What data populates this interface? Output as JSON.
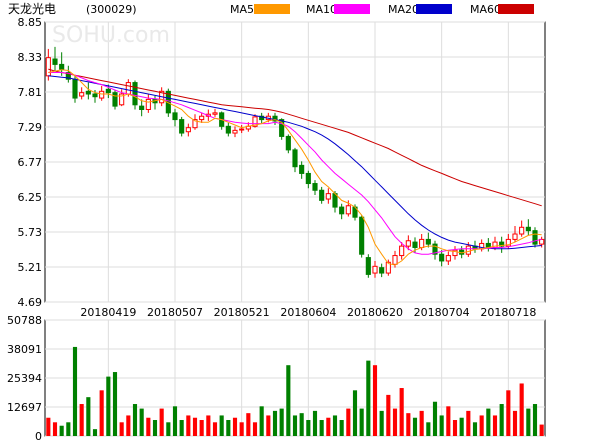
{
  "chart_data": [
    {
      "type": "candlestick",
      "title": "天龙光电",
      "code": "(300029)",
      "watermark": "SOHU.com",
      "legend": [
        {
          "name": "MA5",
          "color": "#ff9900"
        },
        {
          "name": "MA10",
          "color": "#ff00ff"
        },
        {
          "name": "MA20",
          "color": "#0000cc"
        },
        {
          "name": "MA60",
          "color": "#cc0000"
        }
      ],
      "ylim": [
        4.69,
        8.85
      ],
      "yticks": [
        "8.85",
        "8.33",
        "7.81",
        "7.29",
        "6.77",
        "6.25",
        "5.73",
        "5.21",
        "4.69"
      ],
      "xticks": [
        {
          "label": "20180419",
          "index": 9
        },
        {
          "label": "20180507",
          "index": 19
        },
        {
          "label": "20180521",
          "index": 29
        },
        {
          "label": "20180604",
          "index": 39
        },
        {
          "label": "20180620",
          "index": 49
        },
        {
          "label": "20180704",
          "index": 59
        },
        {
          "label": "20180718",
          "index": 69
        }
      ],
      "up_color": "#ff0000",
      "down_color": "#008000",
      "grid": true,
      "candles": [
        [
          8.05,
          8.32,
          8.45,
          7.98
        ],
        [
          8.3,
          8.22,
          8.48,
          8.12
        ],
        [
          8.22,
          8.15,
          8.4,
          8.05
        ],
        [
          8.1,
          8.0,
          8.2,
          7.95
        ],
        [
          8.0,
          7.72,
          8.05,
          7.65
        ],
        [
          7.75,
          7.8,
          7.88,
          7.7
        ],
        [
          7.82,
          7.78,
          7.95,
          7.7
        ],
        [
          7.78,
          7.74,
          7.84,
          7.65
        ],
        [
          7.72,
          7.82,
          7.9,
          7.68
        ],
        [
          7.85,
          7.8,
          7.92,
          7.72
        ],
        [
          7.8,
          7.6,
          7.84,
          7.55
        ],
        [
          7.62,
          7.78,
          7.85,
          7.6
        ],
        [
          7.78,
          7.95,
          8.0,
          7.74
        ],
        [
          7.95,
          7.62,
          7.98,
          7.55
        ],
        [
          7.6,
          7.55,
          7.7,
          7.45
        ],
        [
          7.55,
          7.7,
          7.78,
          7.5
        ],
        [
          7.7,
          7.65,
          7.75,
          7.55
        ],
        [
          7.65,
          7.82,
          7.88,
          7.6
        ],
        [
          7.82,
          7.5,
          7.86,
          7.44
        ],
        [
          7.5,
          7.4,
          7.56,
          7.3
        ],
        [
          7.4,
          7.2,
          7.44,
          7.15
        ],
        [
          7.22,
          7.28,
          7.34,
          7.15
        ],
        [
          7.28,
          7.4,
          7.48,
          7.25
        ],
        [
          7.4,
          7.45,
          7.5,
          7.35
        ],
        [
          7.45,
          7.48,
          7.55,
          7.38
        ],
        [
          7.48,
          7.5,
          7.56,
          7.44
        ],
        [
          7.5,
          7.3,
          7.52,
          7.25
        ],
        [
          7.3,
          7.2,
          7.35,
          7.15
        ],
        [
          7.2,
          7.24,
          7.3,
          7.14
        ],
        [
          7.25,
          7.26,
          7.32,
          7.2
        ],
        [
          7.26,
          7.3,
          7.36,
          7.22
        ],
        [
          7.3,
          7.44,
          7.48,
          7.28
        ],
        [
          7.45,
          7.4,
          7.5,
          7.35
        ],
        [
          7.4,
          7.45,
          7.5,
          7.36
        ],
        [
          7.45,
          7.38,
          7.5,
          7.32
        ],
        [
          7.4,
          7.15,
          7.42,
          7.1
        ],
        [
          7.15,
          6.95,
          7.18,
          6.9
        ],
        [
          6.95,
          6.7,
          6.98,
          6.62
        ],
        [
          6.72,
          6.6,
          6.78,
          6.52
        ],
        [
          6.6,
          6.45,
          6.64,
          6.38
        ],
        [
          6.45,
          6.35,
          6.5,
          6.28
        ],
        [
          6.35,
          6.2,
          6.4,
          6.15
        ],
        [
          6.22,
          6.3,
          6.38,
          6.15
        ],
        [
          6.3,
          6.1,
          6.34,
          6.02
        ],
        [
          6.1,
          6.0,
          6.15,
          5.92
        ],
        [
          6.0,
          6.12,
          6.2,
          5.96
        ],
        [
          6.1,
          5.95,
          6.14,
          5.9
        ],
        [
          5.95,
          5.4,
          5.98,
          5.35
        ],
        [
          5.35,
          5.1,
          5.4,
          5.05
        ],
        [
          5.12,
          5.22,
          5.3,
          5.05
        ],
        [
          5.2,
          5.12,
          5.26,
          5.06
        ],
        [
          5.12,
          5.28,
          5.32,
          5.08
        ],
        [
          5.25,
          5.38,
          5.45,
          5.2
        ],
        [
          5.38,
          5.52,
          5.58,
          5.32
        ],
        [
          5.52,
          5.6,
          5.68,
          5.46
        ],
        [
          5.58,
          5.5,
          5.65,
          5.42
        ],
        [
          5.5,
          5.62,
          5.7,
          5.46
        ],
        [
          5.62,
          5.55,
          5.72,
          5.5
        ],
        [
          5.55,
          5.4,
          5.6,
          5.32
        ],
        [
          5.4,
          5.3,
          5.46,
          5.22
        ],
        [
          5.3,
          5.38,
          5.44,
          5.24
        ],
        [
          5.38,
          5.46,
          5.52,
          5.32
        ],
        [
          5.46,
          5.4,
          5.52,
          5.34
        ],
        [
          5.4,
          5.52,
          5.58,
          5.36
        ],
        [
          5.52,
          5.48,
          5.6,
          5.42
        ],
        [
          5.48,
          5.56,
          5.62,
          5.44
        ],
        [
          5.56,
          5.5,
          5.64,
          5.44
        ],
        [
          5.5,
          5.58,
          5.66,
          5.46
        ],
        [
          5.58,
          5.52,
          5.66,
          5.42
        ],
        [
          5.52,
          5.62,
          5.7,
          5.48
        ],
        [
          5.62,
          5.7,
          5.82,
          5.58
        ],
        [
          5.7,
          5.8,
          5.9,
          5.66
        ],
        [
          5.8,
          5.75,
          5.92,
          5.68
        ],
        [
          5.75,
          5.55,
          5.8,
          5.5
        ],
        [
          5.55,
          5.62,
          5.66,
          5.5
        ]
      ],
      "ma5": [
        8.1,
        8.12,
        8.14,
        8.13,
        8.05,
        7.95,
        7.85,
        7.8,
        7.78,
        7.78,
        7.75,
        7.75,
        7.78,
        7.74,
        7.68,
        7.66,
        7.68,
        7.7,
        7.65,
        7.6,
        7.55,
        7.45,
        7.38,
        7.36,
        7.36,
        7.42,
        7.4,
        7.36,
        7.32,
        7.28,
        7.3,
        7.32,
        7.34,
        7.38,
        7.4,
        7.36,
        7.24,
        7.1,
        6.96,
        6.8,
        6.62,
        6.48,
        6.4,
        6.3,
        6.2,
        6.16,
        6.1,
        5.98,
        5.8,
        5.55,
        5.4,
        5.26,
        5.24,
        5.3,
        5.4,
        5.46,
        5.5,
        5.52,
        5.52,
        5.48,
        5.45,
        5.44,
        5.42,
        5.44,
        5.47,
        5.48,
        5.5,
        5.52,
        5.53,
        5.54,
        5.58,
        5.63,
        5.68,
        5.7,
        5.69
      ],
      "ma10": [
        8.1,
        8.1,
        8.1,
        8.09,
        8.06,
        8.02,
        7.98,
        7.95,
        7.92,
        7.88,
        7.84,
        7.8,
        7.78,
        7.76,
        7.74,
        7.72,
        7.71,
        7.7,
        7.68,
        7.65,
        7.62,
        7.58,
        7.54,
        7.5,
        7.46,
        7.42,
        7.4,
        7.38,
        7.36,
        7.35,
        7.34,
        7.34,
        7.34,
        7.34,
        7.36,
        7.34,
        7.3,
        7.22,
        7.12,
        7.02,
        6.92,
        6.8,
        6.7,
        6.6,
        6.52,
        6.44,
        6.36,
        6.28,
        6.18,
        6.06,
        5.94,
        5.8,
        5.66,
        5.56,
        5.48,
        5.42,
        5.4,
        5.4,
        5.42,
        5.44,
        5.46,
        5.47,
        5.48,
        5.48,
        5.48,
        5.48,
        5.49,
        5.5,
        5.5,
        5.51,
        5.53,
        5.55,
        5.57,
        5.6,
        5.62
      ],
      "ma20": [
        8.05,
        8.04,
        8.03,
        8.02,
        8.0,
        7.98,
        7.96,
        7.94,
        7.92,
        7.9,
        7.88,
        7.86,
        7.84,
        7.82,
        7.8,
        7.78,
        7.76,
        7.74,
        7.72,
        7.7,
        7.68,
        7.66,
        7.64,
        7.62,
        7.6,
        7.58,
        7.56,
        7.54,
        7.52,
        7.5,
        7.48,
        7.46,
        7.44,
        7.42,
        7.4,
        7.38,
        7.36,
        7.33,
        7.3,
        7.26,
        7.22,
        7.17,
        7.11,
        7.04,
        6.96,
        6.88,
        6.79,
        6.7,
        6.6,
        6.5,
        6.4,
        6.3,
        6.2,
        6.1,
        6.0,
        5.91,
        5.83,
        5.76,
        5.7,
        5.65,
        5.61,
        5.58,
        5.56,
        5.54,
        5.52,
        5.5,
        5.49,
        5.48,
        5.48,
        5.48,
        5.49,
        5.5,
        5.51,
        5.52,
        5.53
      ],
      "ma60": [
        8.15,
        8.12,
        8.1,
        8.08,
        8.06,
        8.04,
        8.02,
        8.0,
        7.98,
        7.96,
        7.94,
        7.92,
        7.9,
        7.88,
        7.86,
        7.84,
        7.82,
        7.8,
        7.78,
        7.76,
        7.74,
        7.72,
        7.7,
        7.68,
        7.66,
        7.64,
        7.62,
        7.61,
        7.6,
        7.59,
        7.58,
        7.57,
        7.56,
        7.55,
        7.53,
        7.51,
        7.48,
        7.45,
        7.42,
        7.39,
        7.36,
        7.33,
        7.3,
        7.27,
        7.24,
        7.21,
        7.17,
        7.13,
        7.09,
        7.05,
        7.01,
        6.97,
        6.92,
        6.87,
        6.82,
        6.77,
        6.72,
        6.68,
        6.64,
        6.6,
        6.56,
        6.52,
        6.48,
        6.45,
        6.42,
        6.39,
        6.36,
        6.33,
        6.3,
        6.27,
        6.24,
        6.21,
        6.18,
        6.15,
        6.12
      ]
    },
    {
      "type": "bar",
      "ylim": [
        0,
        50788
      ],
      "yticks": [
        "50788",
        "38091",
        "25394",
        "12697",
        "0"
      ],
      "volumes": [
        8000,
        6000,
        4500,
        6000,
        39000,
        14000,
        17000,
        3000,
        20000,
        26000,
        28000,
        6000,
        9000,
        14000,
        12000,
        8000,
        7000,
        12000,
        6000,
        13000,
        7000,
        9000,
        8000,
        7000,
        9000,
        6000,
        9000,
        7000,
        8000,
        6000,
        10000,
        6000,
        13000,
        9000,
        11000,
        12000,
        31000,
        9000,
        10000,
        7000,
        11000,
        7000,
        8000,
        9000,
        7000,
        12000,
        20000,
        12000,
        33000,
        31000,
        11000,
        18000,
        12000,
        21000,
        10000,
        8000,
        11000,
        6000,
        15000,
        9000,
        13000,
        7000,
        8000,
        11000,
        6000,
        9000,
        12000,
        9000,
        14000,
        20000,
        11000,
        23000,
        12000,
        14000,
        5000
      ],
      "up": [
        true,
        true,
        false,
        false,
        false,
        true,
        false,
        false,
        true,
        false,
        false,
        true,
        true,
        false,
        false,
        true,
        false,
        true,
        false,
        false,
        false,
        true,
        true,
        true,
        true,
        true,
        false,
        false,
        true,
        true,
        true,
        true,
        false,
        true,
        false,
        false,
        false,
        false,
        false,
        false,
        false,
        false,
        true,
        false,
        false,
        true,
        false,
        false,
        false,
        true,
        false,
        true,
        true,
        true,
        true,
        false,
        true,
        false,
        false,
        false,
        true,
        true,
        false,
        true,
        false,
        true,
        false,
        true,
        false,
        true,
        true,
        true,
        false,
        false,
        true
      ]
    }
  ]
}
